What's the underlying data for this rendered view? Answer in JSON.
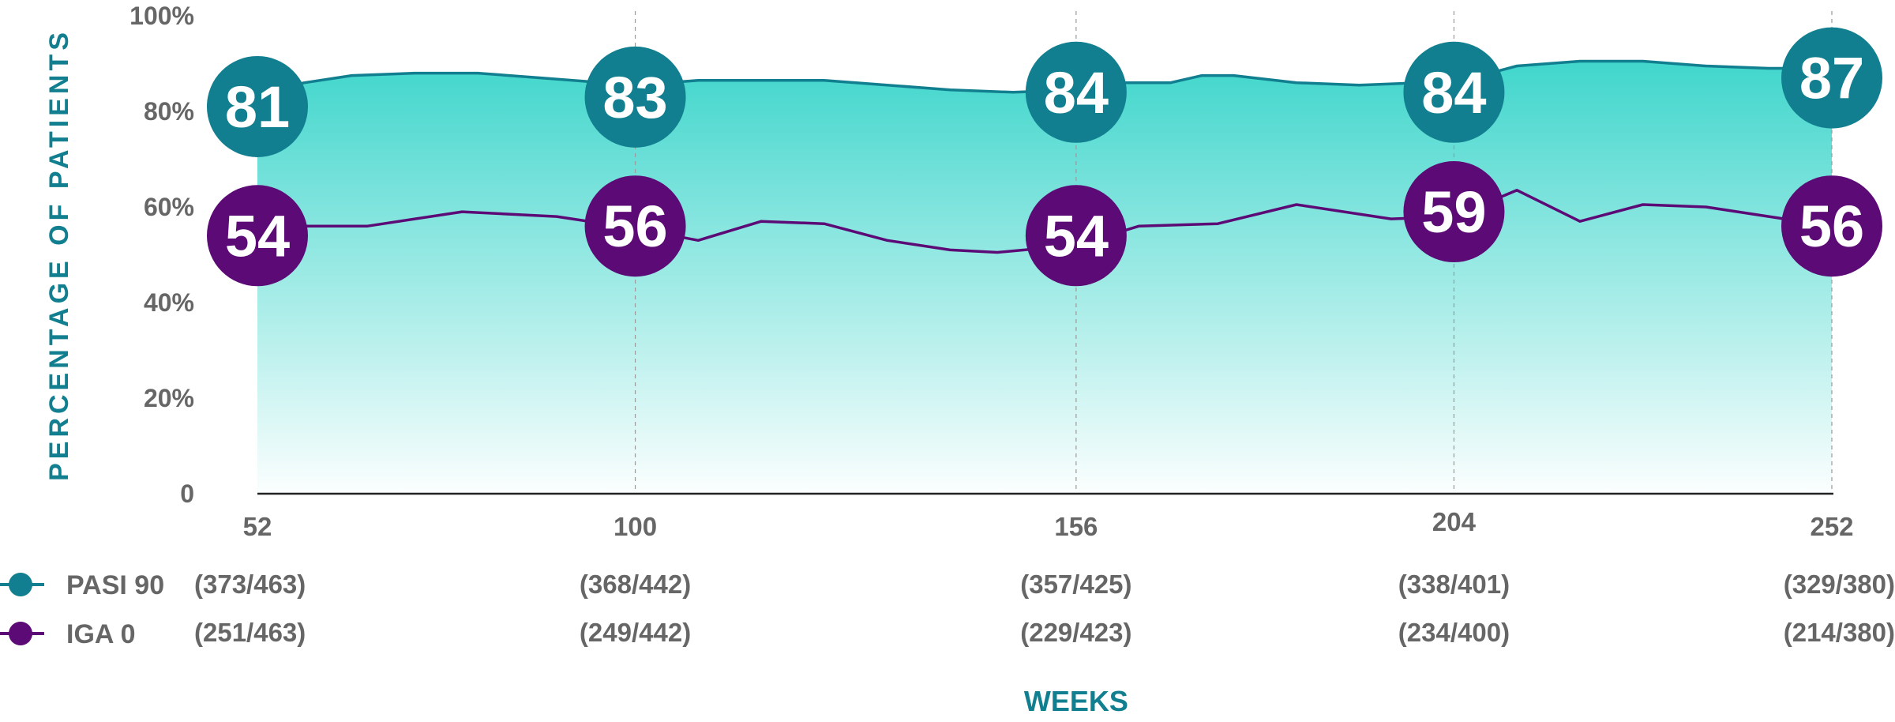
{
  "chart_data": {
    "type": "area",
    "xlabel": "WEEKS",
    "ylabel": "PERCENTAGE OF PATIENTS",
    "ylim": [
      0,
      100
    ],
    "y_ticks": [
      "0",
      "20%",
      "40%",
      "60%",
      "80%",
      "100%"
    ],
    "y_tick_values": [
      0,
      20,
      40,
      60,
      80,
      100
    ],
    "categories": [
      "52",
      "100",
      "156",
      "204",
      "252"
    ],
    "grid": "vertical dashed lines at labeled weeks",
    "legend_position": "left, below x-axis",
    "series": [
      {
        "name": "PASI 90",
        "color": "#117f8f",
        "fill_top": "#40d6cc",
        "values": [
          81,
          83,
          84,
          84,
          87
        ],
        "counts": [
          "(373/463)",
          "(368/442)",
          "(357/425)",
          "(338/401)",
          "(329/380)"
        ],
        "trace": [
          [
            52,
            84
          ],
          [
            58,
            86
          ],
          [
            64,
            87.5
          ],
          [
            72,
            88
          ],
          [
            80,
            88
          ],
          [
            88,
            87
          ],
          [
            96,
            86
          ],
          [
            100,
            85.5
          ],
          [
            108,
            86.5
          ],
          [
            116,
            86.5
          ],
          [
            124,
            86.5
          ],
          [
            132,
            85.5
          ],
          [
            140,
            84.5
          ],
          [
            148,
            84
          ],
          [
            156,
            84.5
          ],
          [
            160,
            86
          ],
          [
            168,
            86
          ],
          [
            172,
            87.5
          ],
          [
            176,
            87.5
          ],
          [
            184,
            86
          ],
          [
            192,
            85.5
          ],
          [
            200,
            86
          ],
          [
            204,
            86
          ],
          [
            212,
            89.5
          ],
          [
            220,
            90.5
          ],
          [
            228,
            90.5
          ],
          [
            236,
            89.5
          ],
          [
            244,
            89
          ],
          [
            252,
            89
          ]
        ]
      },
      {
        "name": "IGA 0",
        "color": "#5c0a75",
        "values": [
          54,
          56,
          54,
          59,
          56
        ],
        "counts": [
          "(251/463)",
          "(249/442)",
          "(229/423)",
          "(234/400)",
          "(214/380)"
        ],
        "trace": [
          [
            52,
            52.5
          ],
          [
            56,
            56
          ],
          [
            66,
            56
          ],
          [
            78,
            59
          ],
          [
            90,
            58
          ],
          [
            100,
            55.5
          ],
          [
            108,
            53
          ],
          [
            116,
            57
          ],
          [
            124,
            56.5
          ],
          [
            132,
            53
          ],
          [
            140,
            51
          ],
          [
            146,
            50.5
          ],
          [
            156,
            52
          ],
          [
            164,
            56
          ],
          [
            174,
            56.5
          ],
          [
            184,
            60.5
          ],
          [
            196,
            57.5
          ],
          [
            204,
            58
          ],
          [
            212,
            63.5
          ],
          [
            220,
            57
          ],
          [
            228,
            60.5
          ],
          [
            236,
            60
          ],
          [
            244,
            58
          ],
          [
            252,
            56
          ]
        ]
      }
    ]
  }
}
